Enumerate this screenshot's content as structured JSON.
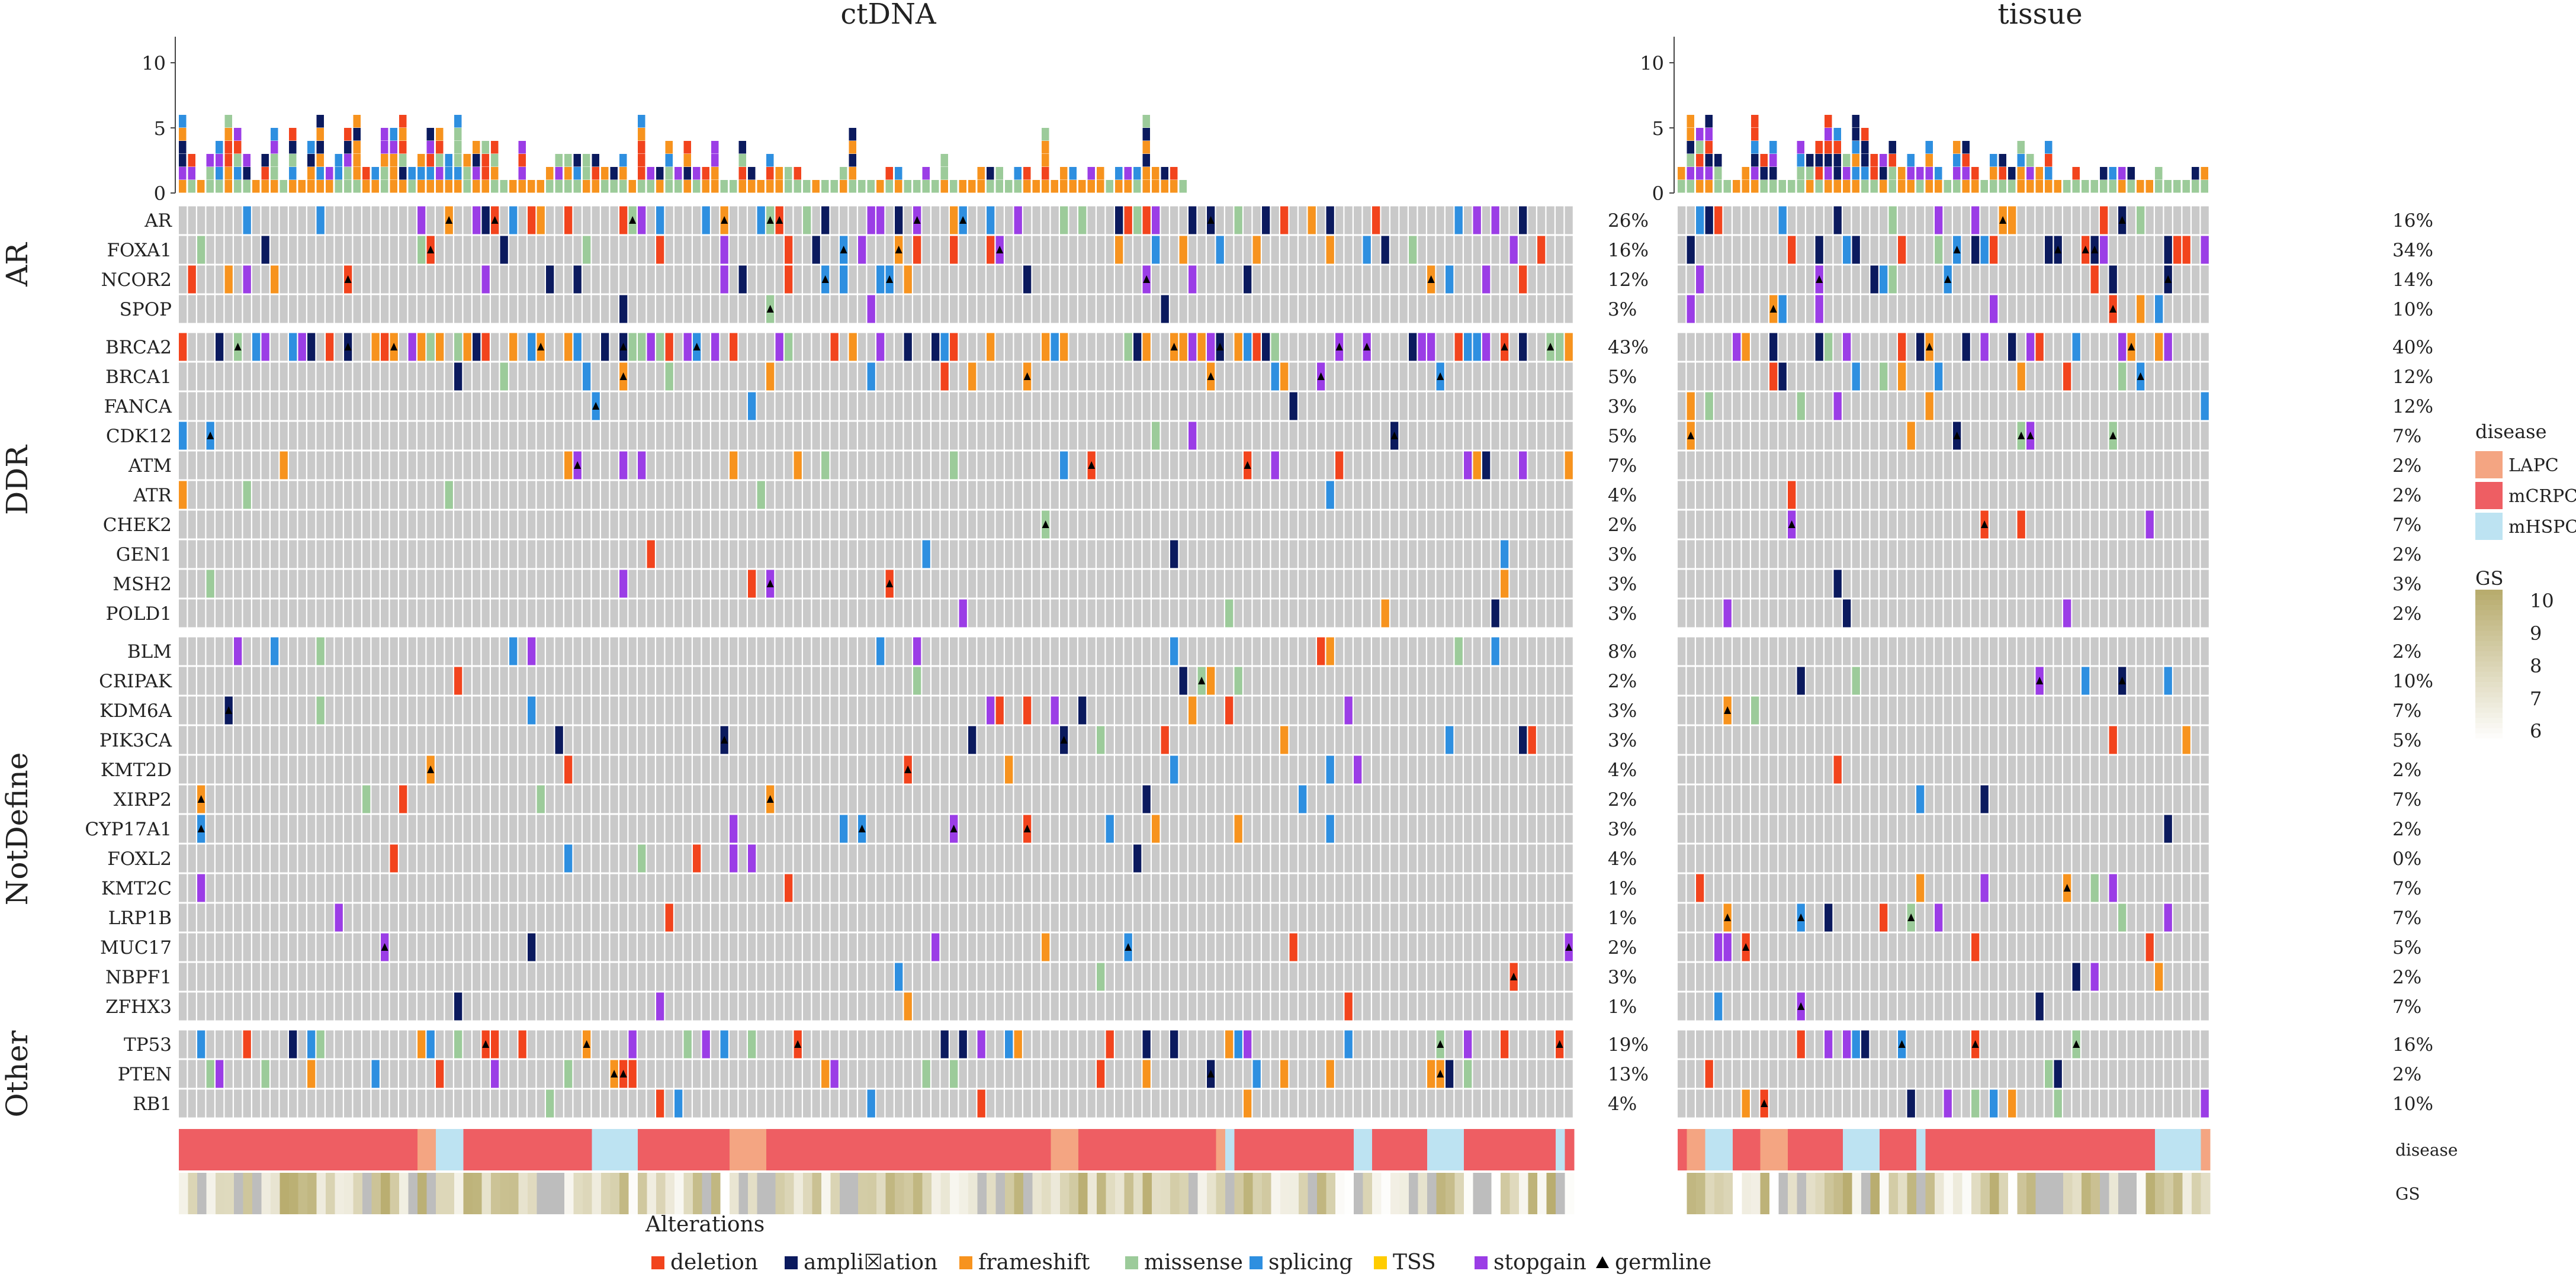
{
  "chart_data": {
    "type": "oncoprint",
    "panels": [
      {
        "title": "ctDNA",
        "n_samples": 152
      },
      {
        "title": "tissue",
        "n_samples": 58
      }
    ],
    "top_axis": {
      "ticks": [
        0,
        5,
        10
      ],
      "ylim": [
        0,
        12
      ]
    },
    "groups": [
      {
        "label": "AR",
        "genes": [
          "AR",
          "FOXA1",
          "NCOR2",
          "SPOP"
        ]
      },
      {
        "label": "DDR",
        "genes": [
          "BRCA2",
          "BRCA1",
          "FANCA",
          "CDK12",
          "ATM",
          "ATR",
          "CHEK2",
          "GEN1",
          "MSH2",
          "POLD1"
        ]
      },
      {
        "label": "NotDefine",
        "genes": [
          "BLM",
          "CRIPAK",
          "KDM6A",
          "PIK3CA",
          "KMT2D",
          "XIRP2",
          "CYP17A1",
          "FOXL2",
          "KMT2C",
          "LRP1B",
          "MUC17",
          "NBPF1",
          "ZFHX3"
        ]
      },
      {
        "label": "Other",
        "genes": [
          "TP53",
          "PTEN",
          "RB1"
        ]
      }
    ],
    "percent_ctdna": [
      "26%",
      "16%",
      "12%",
      "3%",
      "43%",
      "5%",
      "3%",
      "5%",
      "7%",
      "4%",
      "2%",
      "3%",
      "3%",
      "3%",
      "8%",
      "2%",
      "3%",
      "3%",
      "4%",
      "2%",
      "3%",
      "4%",
      "1%",
      "1%",
      "2%",
      "3%",
      "1%",
      "19%",
      "13%",
      "4%"
    ],
    "percent_tissue": [
      "16%",
      "34%",
      "14%",
      "10%",
      "40%",
      "12%",
      "12%",
      "7%",
      "2%",
      "2%",
      "7%",
      "2%",
      "3%",
      "2%",
      "2%",
      "10%",
      "7%",
      "5%",
      "2%",
      "7%",
      "2%",
      "0%",
      "7%",
      "7%",
      "5%",
      "2%",
      "7%",
      "16%",
      "2%",
      "10%"
    ],
    "annotation_rows": [
      "disease",
      "GS"
    ],
    "legend_disease": {
      "title": "disease",
      "items": [
        {
          "label": "LAPC",
          "color": "#f4a582"
        },
        {
          "label": "mCRPC",
          "color": "#ee5e63"
        },
        {
          "label": "mHSPC",
          "color": "#bde3f2"
        }
      ]
    },
    "legend_gs": {
      "title": "GS",
      "ticks": [
        "10",
        "9",
        "8",
        "7",
        "6"
      ],
      "min": 6,
      "max": 10
    },
    "alterations_legend": {
      "title": "Alterations",
      "items": [
        {
          "label": "deletion",
          "color": "#f2441d",
          "kind": "box"
        },
        {
          "label": "ampli☒ation",
          "color": "#0b1a5e",
          "kind": "box"
        },
        {
          "label": "frameshift",
          "color": "#f7931e",
          "kind": "box"
        },
        {
          "label": "missense",
          "color": "#9ccb9a",
          "kind": "box"
        },
        {
          "label": "splicing",
          "color": "#2e8fe0",
          "kind": "box"
        },
        {
          "label": "TSS",
          "color": "#ffcc00",
          "kind": "box"
        },
        {
          "label": "stopgain",
          "color": "#9b3de6",
          "kind": "box"
        },
        {
          "label": "germline",
          "color": "#000000",
          "kind": "triangle"
        }
      ]
    },
    "colors": {
      "background_cell": "#c9c9c9",
      "deletion": "#f2441d",
      "amplification": "#0b1a5e",
      "frameshift": "#f7931e",
      "missense": "#9ccb9a",
      "splicing": "#2e8fe0",
      "stopgain": "#9b3de6",
      "germline": "#000000"
    }
  }
}
